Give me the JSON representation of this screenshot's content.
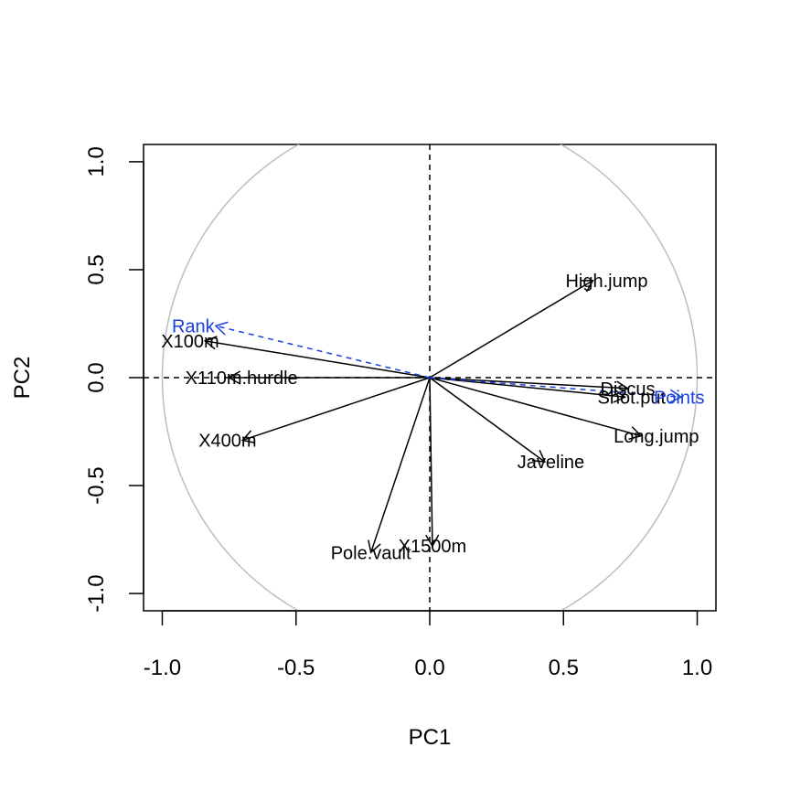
{
  "chart_data": {
    "type": "scatter",
    "xlabel": "PC1",
    "ylabel": "PC2",
    "xlim": [
      -1.07,
      1.07
    ],
    "ylim": [
      -1.08,
      1.08
    ],
    "x_ticks": [
      -1.0,
      -0.5,
      0.0,
      0.5,
      1.0
    ],
    "y_ticks": [
      -1.0,
      -0.5,
      0.0,
      0.5,
      1.0
    ],
    "x_tick_labels": [
      "-1.0",
      "-0.5",
      "0.0",
      "0.5",
      "1.0"
    ],
    "y_tick_labels": [
      "-1.0",
      "-0.5",
      "0.0",
      "0.5",
      "1.0"
    ],
    "unit_circle": true,
    "reference_lines": {
      "horizontal": 0,
      "vertical": 0,
      "style": "dashed"
    },
    "active_color": "#000000",
    "supplementary_color": "#1A3FE0",
    "circle_color": "#BEBEBE",
    "variables": [
      {
        "name": "X100m",
        "x": -0.84,
        "y": 0.17,
        "supplementary": false
      },
      {
        "name": "X110m.hurdle",
        "x": -0.75,
        "y": 0.0,
        "supplementary": false
      },
      {
        "name": "X400m",
        "x": -0.7,
        "y": -0.29,
        "supplementary": false
      },
      {
        "name": "High.jump",
        "x": 0.61,
        "y": 0.45,
        "supplementary": false
      },
      {
        "name": "Discus",
        "x": 0.74,
        "y": -0.05,
        "supplementary": false
      },
      {
        "name": "Shot.put",
        "x": 0.73,
        "y": -0.09,
        "supplementary": false
      },
      {
        "name": "Long.jump",
        "x": 0.79,
        "y": -0.27,
        "supplementary": false
      },
      {
        "name": "Javeline",
        "x": 0.43,
        "y": -0.39,
        "supplementary": false
      },
      {
        "name": "Pole.vault",
        "x": -0.22,
        "y": -0.81,
        "supplementary": false
      },
      {
        "name": "X1500m",
        "x": 0.01,
        "y": -0.78,
        "supplementary": false
      },
      {
        "name": "Rank",
        "x": -0.8,
        "y": 0.24,
        "supplementary": true
      },
      {
        "name": "Points",
        "x": 0.94,
        "y": -0.09,
        "supplementary": true
      }
    ]
  }
}
